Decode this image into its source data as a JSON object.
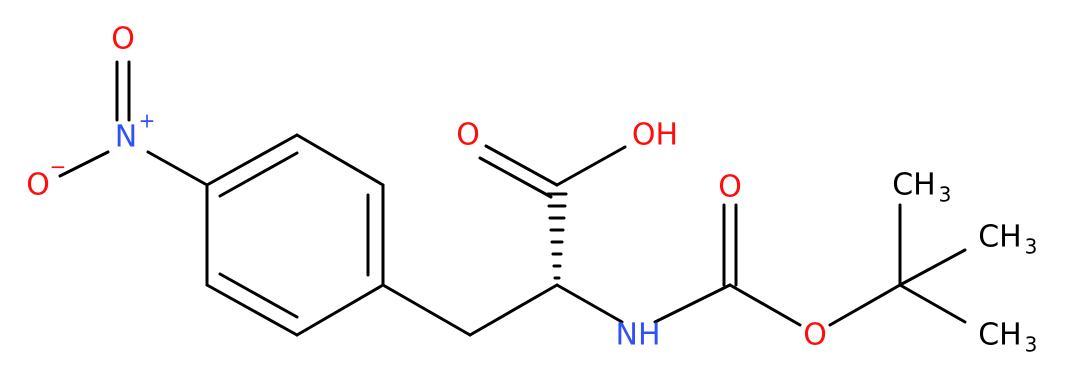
{
  "atoms": [
    {
      "label": "O"
    },
    {
      "label": "N",
      "charge": "+"
    },
    {
      "label": "O",
      "charge": "−"
    },
    {
      "label": "O"
    },
    {
      "label": "OH"
    },
    {
      "label": "O"
    },
    {
      "label": "NH"
    },
    {
      "label": "O"
    },
    {
      "label": "CH",
      "subscript": "3"
    },
    {
      "label": "CH",
      "subscript": "3"
    },
    {
      "label": "CH",
      "subscript": "3"
    }
  ]
}
